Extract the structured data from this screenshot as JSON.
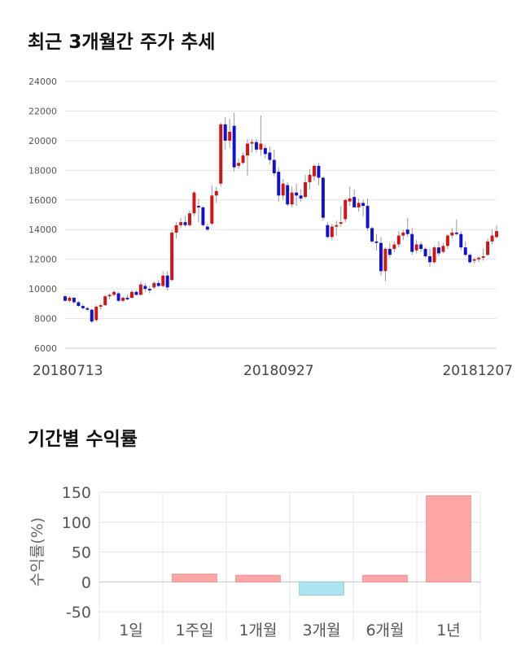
{
  "sections": {
    "price_title": "최근 3개월간 주가 추세",
    "returns_title": "기간별 수익률"
  },
  "colors": {
    "up": "#d11515",
    "down": "#1010d0",
    "positive_bar": "#ffa6a6",
    "negative_bar": "#aee4f0",
    "grid": "#e6e6e6"
  },
  "chart_data": [
    {
      "type": "candlestick",
      "title": "",
      "ylim": [
        6000,
        24000
      ],
      "y_ticks": [
        6000,
        8000,
        10000,
        12000,
        14000,
        16000,
        18000,
        20000,
        22000,
        24000
      ],
      "x_labels": [
        {
          "label": "20180713",
          "index": 0
        },
        {
          "label": "20180927",
          "index": 48
        },
        {
          "label": "20181207",
          "index": 97
        }
      ],
      "n_days": 98,
      "ohlc": [
        [
          9500,
          9600,
          9150,
          9200
        ],
        [
          9200,
          9500,
          9100,
          9400
        ],
        [
          9400,
          9450,
          9000,
          9100
        ],
        [
          9100,
          9200,
          8800,
          8850
        ],
        [
          8850,
          9000,
          8600,
          8700
        ],
        [
          8700,
          8800,
          8500,
          8600
        ],
        [
          8600,
          8650,
          7700,
          7800
        ],
        [
          7900,
          8900,
          7800,
          8800
        ],
        [
          8800,
          9000,
          8600,
          8900
        ],
        [
          8900,
          9600,
          8850,
          9500
        ],
        [
          9500,
          9700,
          9300,
          9600
        ],
        [
          9600,
          9900,
          9500,
          9800
        ],
        [
          9700,
          9800,
          9100,
          9200
        ],
        [
          9200,
          9500,
          9100,
          9400
        ],
        [
          9400,
          9600,
          9250,
          9300
        ],
        [
          9400,
          9900,
          9350,
          9800
        ],
        [
          9800,
          9900,
          9550,
          9600
        ],
        [
          9600,
          10500,
          9550,
          10300
        ],
        [
          10200,
          10400,
          9800,
          10000
        ],
        [
          10000,
          10200,
          9700,
          9900
        ],
        [
          10100,
          10500,
          10000,
          10400
        ],
        [
          10400,
          10600,
          10100,
          10200
        ],
        [
          10200,
          11200,
          10100,
          10900
        ],
        [
          10900,
          11200,
          9900,
          10100
        ],
        [
          10600,
          14000,
          10500,
          13800
        ],
        [
          13800,
          14500,
          13400,
          14300
        ],
        [
          14300,
          14800,
          14100,
          14500
        ],
        [
          14500,
          14900,
          14200,
          14300
        ],
        [
          14300,
          15300,
          14200,
          15100
        ],
        [
          15100,
          16600,
          14900,
          16500
        ],
        [
          15600,
          16100,
          14500,
          15500
        ],
        [
          15500,
          15600,
          14200,
          14300
        ],
        [
          14200,
          14400,
          13900,
          14000
        ],
        [
          14400,
          17000,
          14300,
          16300
        ],
        [
          16300,
          16900,
          15800,
          16600
        ],
        [
          17100,
          21200,
          16900,
          21100
        ],
        [
          21100,
          21600,
          19400,
          20000
        ],
        [
          20000,
          21500,
          19500,
          20600
        ],
        [
          21000,
          21900,
          17900,
          18200
        ],
        [
          18300,
          18800,
          18100,
          18500
        ],
        [
          18500,
          19200,
          18400,
          19000
        ],
        [
          19000,
          20100,
          17600,
          19800
        ],
        [
          19800,
          20100,
          19200,
          19900
        ],
        [
          19900,
          20100,
          19200,
          19400
        ],
        [
          19400,
          21700,
          19000,
          19800
        ],
        [
          19500,
          19700,
          18800,
          19100
        ],
        [
          19200,
          19600,
          18400,
          18700
        ],
        [
          18700,
          19400,
          17600,
          17800
        ],
        [
          17900,
          18200,
          15900,
          16300
        ],
        [
          16300,
          17400,
          16000,
          17100
        ],
        [
          17000,
          17200,
          15600,
          15700
        ],
        [
          15700,
          16900,
          15500,
          16500
        ],
        [
          16500,
          17100,
          15600,
          16300
        ],
        [
          16300,
          16700,
          15900,
          16100
        ],
        [
          16200,
          17700,
          16100,
          17200
        ],
        [
          17200,
          18100,
          16700,
          17700
        ],
        [
          17600,
          18400,
          17300,
          18300
        ],
        [
          18300,
          18500,
          17000,
          17500
        ],
        [
          17500,
          17600,
          14600,
          14800
        ],
        [
          14300,
          14500,
          13400,
          13500
        ],
        [
          13500,
          14400,
          13300,
          14200
        ],
        [
          14200,
          14600,
          13600,
          14300
        ],
        [
          14400,
          15600,
          14200,
          14500
        ],
        [
          14700,
          16100,
          14500,
          16000
        ],
        [
          15900,
          16900,
          15600,
          16100
        ],
        [
          16200,
          16700,
          15500,
          15500
        ],
        [
          15500,
          16100,
          15200,
          15800
        ],
        [
          15800,
          16000,
          14900,
          15600
        ],
        [
          15600,
          16100,
          13900,
          14100
        ],
        [
          14100,
          14200,
          13100,
          13200
        ],
        [
          13200,
          13700,
          12600,
          13100
        ],
        [
          13100,
          13500,
          10900,
          11200
        ],
        [
          11200,
          12800,
          10500,
          12700
        ],
        [
          12700,
          13100,
          12100,
          12300
        ],
        [
          12700,
          13200,
          12500,
          13000
        ],
        [
          13000,
          13900,
          12800,
          13600
        ],
        [
          13600,
          14000,
          13300,
          13800
        ],
        [
          14000,
          14800,
          13500,
          13700
        ],
        [
          13700,
          14100,
          12300,
          12500
        ],
        [
          12600,
          13300,
          12400,
          13000
        ],
        [
          13000,
          13200,
          12500,
          12700
        ],
        [
          12700,
          12800,
          12100,
          12200
        ],
        [
          12200,
          12700,
          11500,
          11800
        ],
        [
          11800,
          12900,
          11700,
          12800
        ],
        [
          12800,
          13200,
          12200,
          12400
        ],
        [
          12500,
          13100,
          12400,
          12900
        ],
        [
          12900,
          13700,
          12700,
          13600
        ],
        [
          13600,
          14100,
          13400,
          13800
        ],
        [
          13800,
          14700,
          13600,
          13700
        ],
        [
          13700,
          13900,
          12600,
          12800
        ],
        [
          12800,
          13200,
          12200,
          12300
        ],
        [
          12300,
          12400,
          11700,
          11800
        ],
        [
          11900,
          12100,
          11700,
          12000
        ],
        [
          12000,
          12200,
          11800,
          12100
        ],
        [
          12100,
          12700,
          11900,
          12200
        ],
        [
          12300,
          13400,
          12200,
          13200
        ],
        [
          13200,
          14000,
          13000,
          13600
        ],
        [
          13500,
          14300,
          13400,
          13900
        ]
      ]
    },
    {
      "type": "bar",
      "title": "",
      "ylabel": "수익률(%)",
      "ylim": [
        -50,
        150
      ],
      "y_ticks": [
        -50,
        0,
        50,
        100,
        150
      ],
      "categories": [
        "1일",
        "1주일",
        "1개월",
        "3개월",
        "6개월",
        "1년"
      ],
      "values": [
        0,
        13,
        11,
        -22,
        11,
        144
      ]
    }
  ]
}
